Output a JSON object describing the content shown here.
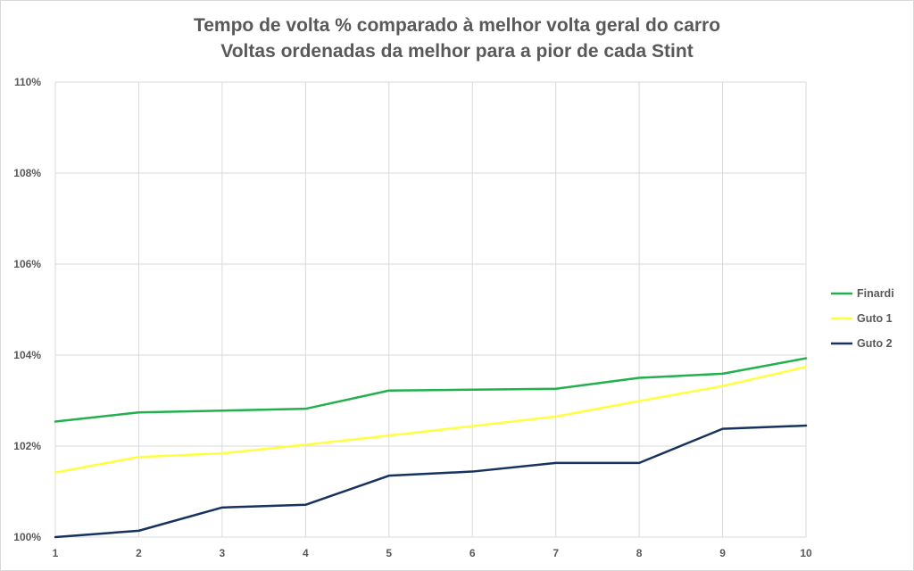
{
  "chart_data": {
    "type": "line",
    "title": "Tempo de volta % comparado à melhor volta geral do carro",
    "subtitle": "Voltas ordenadas da melhor para a pior de cada Stint",
    "xlabel": "",
    "ylabel": "",
    "x": [
      1,
      2,
      3,
      4,
      5,
      6,
      7,
      8,
      9,
      10
    ],
    "x_tick_labels": [
      "1",
      "2",
      "3",
      "4",
      "5",
      "6",
      "7",
      "8",
      "9",
      "10"
    ],
    "ylim": [
      100,
      110
    ],
    "y_tick_labels": [
      "100%",
      "102%",
      "104%",
      "106%",
      "108%",
      "110%"
    ],
    "y_ticks": [
      100,
      102,
      104,
      106,
      108,
      110
    ],
    "grid": true,
    "legend_position": "right",
    "series": [
      {
        "name": "Finardi",
        "color": "#21b04d",
        "values": [
          102.54,
          102.74,
          102.78,
          102.82,
          103.22,
          103.24,
          103.26,
          103.5,
          103.59,
          103.93
        ]
      },
      {
        "name": "Guto 1",
        "color": "#ffff3f",
        "values": [
          101.42,
          101.76,
          101.84,
          102.03,
          102.23,
          102.44,
          102.65,
          102.99,
          103.32,
          103.74
        ]
      },
      {
        "name": "Guto 2",
        "color": "#16325e",
        "values": [
          100.0,
          100.14,
          100.65,
          100.71,
          101.35,
          101.44,
          101.63,
          101.63,
          102.38,
          102.45
        ]
      }
    ]
  }
}
